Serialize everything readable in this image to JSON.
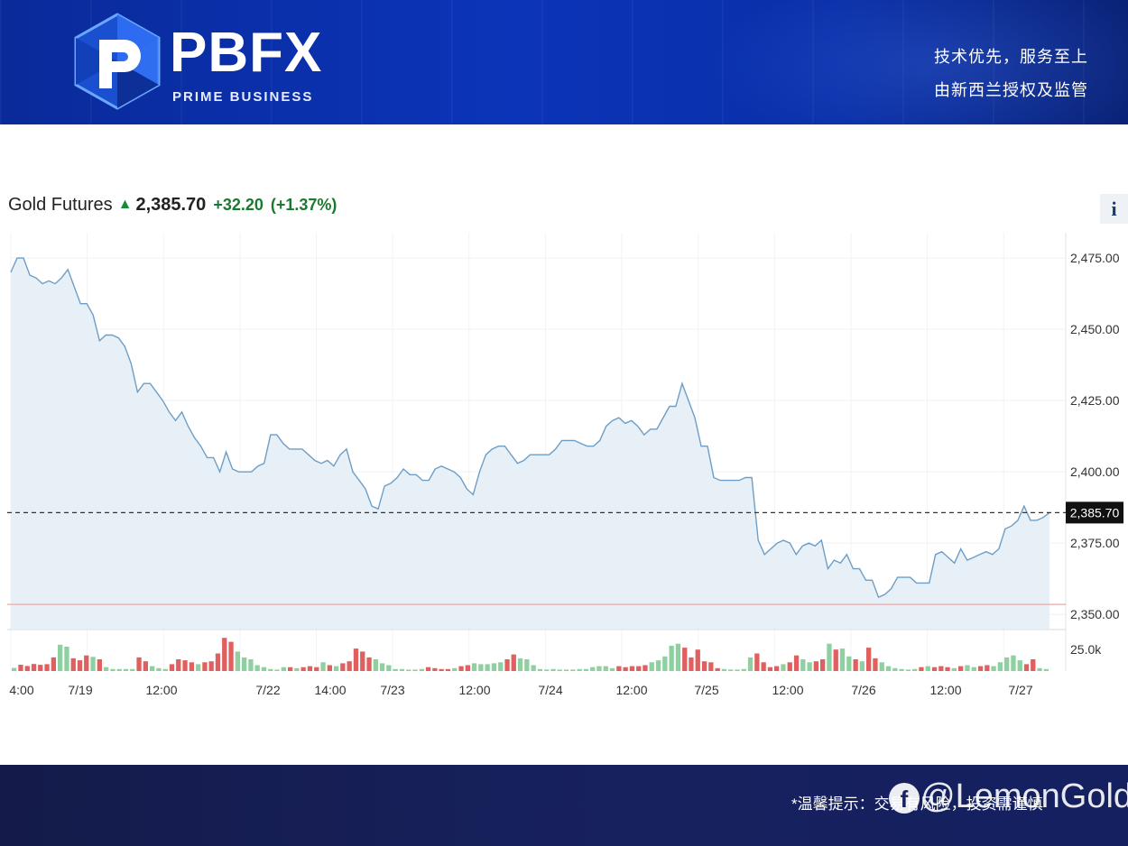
{
  "header": {
    "brand": "PBFX",
    "brand_sub": "PRIME BUSINESS",
    "slogan_line1": "技术优先，服务至上",
    "slogan_line2": "由新西兰授权及监管"
  },
  "quote": {
    "name": "Gold Futures",
    "price": "2,385.70",
    "change": "+32.20",
    "change_pct": "(+1.37%)",
    "direction": "up",
    "info_label": "i"
  },
  "footer": {
    "disclaimer": "*温馨提示：交易有风险，投资需谨慎",
    "watermark": "@LemonGold"
  },
  "colors": {
    "line": "#6e9ec6",
    "area": "#e6eef6",
    "up_change": "#1a7a30",
    "volume_up": "#8fd0a0",
    "volume_down": "#e06060",
    "reference_line": "#e8a8a8",
    "last_price_tag": "#111111"
  },
  "icons": {
    "up": "arrow-up-icon",
    "info": "info-icon",
    "logo": "pbfx-logo-icon",
    "watermark": "facebook-icon"
  },
  "chart_data": {
    "type": "line",
    "title": "Gold Futures",
    "ylim": [
      2345,
      2482
    ],
    "y_ticks": [
      "2,475.00",
      "2,450.00",
      "2,425.00",
      "2,400.00",
      "2,375.00",
      "2,350.00"
    ],
    "y_tick_values": [
      2475,
      2450,
      2425,
      2400,
      2375,
      2350
    ],
    "last_price": 2385.7,
    "last_price_label": "2,385.70",
    "reference_level": 2353.5,
    "x_ticks": [
      "4:00",
      "7/19",
      "12:00",
      "7/22",
      "14:00",
      "7/23",
      "12:00",
      "7/24",
      "12:00",
      "7/25",
      "12:00",
      "7/26",
      "12:00",
      "7/27"
    ],
    "volume_tick_label": "25.0k",
    "volume_max": 37000,
    "series": [
      {
        "values": [
          2470,
          2475,
          2475,
          2469,
          2468,
          2466,
          2467,
          2466,
          2468,
          2471,
          2465,
          2459,
          2459,
          2455,
          2446,
          2448,
          2448,
          2447,
          2444,
          2438,
          2428,
          2431,
          2431,
          2428,
          2425,
          2421,
          2418,
          2421,
          2416,
          2412,
          2409,
          2405,
          2405,
          2400,
          2407,
          2401,
          2400,
          2400,
          2400,
          2402,
          2403,
          2413,
          2413,
          2410,
          2408,
          2408,
          2408,
          2406,
          2404,
          2403,
          2404,
          2402,
          2406,
          2408,
          2400,
          2397,
          2394,
          2388,
          2387,
          2395,
          2396,
          2398,
          2401,
          2399,
          2399,
          2397,
          2397,
          2401,
          2402,
          2401,
          2400,
          2398,
          2394,
          2392,
          2400,
          2406,
          2408,
          2409,
          2409,
          2406,
          2403,
          2404,
          2406,
          2406,
          2406,
          2406,
          2408,
          2411,
          2411,
          2411,
          2410,
          2409,
          2409,
          2411,
          2416,
          2418,
          2419,
          2417,
          2418,
          2416,
          2413,
          2415,
          2415,
          2419,
          2423,
          2423,
          2431,
          2425,
          2419,
          2409,
          2409,
          2398,
          2397,
          2397,
          2397,
          2397,
          2398,
          2398,
          2376,
          2371,
          2373,
          2375,
          2376,
          2375,
          2371,
          2374,
          2375,
          2374,
          2376,
          2366,
          2369,
          2368,
          2371,
          2366,
          2366,
          2362,
          2362,
          2356,
          2357,
          2359,
          2363,
          2363,
          2363,
          2361,
          2361,
          2361,
          2371,
          2372,
          2370,
          2368,
          2373,
          2369,
          2370,
          2371,
          2372,
          2371,
          2373,
          2380,
          2381,
          2383,
          2388,
          2383,
          2383,
          2384,
          2385.7
        ]
      }
    ],
    "volume": [
      {
        "v": 3200,
        "up": true
      },
      {
        "v": 6500,
        "up": false
      },
      {
        "v": 5200,
        "up": false
      },
      {
        "v": 7200,
        "up": false
      },
      {
        "v": 6400,
        "up": false
      },
      {
        "v": 7000,
        "up": false
      },
      {
        "v": 14000,
        "up": false
      },
      {
        "v": 27000,
        "up": true
      },
      {
        "v": 25000,
        "up": true
      },
      {
        "v": 13000,
        "up": false
      },
      {
        "v": 11000,
        "up": false
      },
      {
        "v": 16000,
        "up": false
      },
      {
        "v": 14500,
        "up": true
      },
      {
        "v": 12000,
        "up": false
      },
      {
        "v": 4000,
        "up": true
      },
      {
        "v": 2000,
        "up": true
      },
      {
        "v": 2000,
        "up": true
      },
      {
        "v": 2000,
        "up": true
      },
      {
        "v": 2000,
        "up": true
      },
      {
        "v": 14000,
        "up": false
      },
      {
        "v": 10000,
        "up": false
      },
      {
        "v": 5000,
        "up": true
      },
      {
        "v": 3000,
        "up": true
      },
      {
        "v": 2000,
        "up": true
      },
      {
        "v": 7000,
        "up": false
      },
      {
        "v": 12000,
        "up": false
      },
      {
        "v": 11000,
        "up": false
      },
      {
        "v": 9000,
        "up": false
      },
      {
        "v": 7000,
        "up": true
      },
      {
        "v": 9000,
        "up": false
      },
      {
        "v": 10000,
        "up": false
      },
      {
        "v": 18000,
        "up": false
      },
      {
        "v": 34000,
        "up": false
      },
      {
        "v": 30000,
        "up": false
      },
      {
        "v": 20000,
        "up": true
      },
      {
        "v": 14000,
        "up": true
      },
      {
        "v": 12000,
        "up": true
      },
      {
        "v": 6000,
        "up": true
      },
      {
        "v": 4000,
        "up": true
      },
      {
        "v": 2000,
        "up": true
      },
      {
        "v": 1500,
        "up": true
      },
      {
        "v": 4000,
        "up": true
      },
      {
        "v": 4000,
        "up": false
      },
      {
        "v": 3000,
        "up": true
      },
      {
        "v": 4000,
        "up": false
      },
      {
        "v": 5000,
        "up": false
      },
      {
        "v": 4000,
        "up": false
      },
      {
        "v": 9000,
        "up": true
      },
      {
        "v": 6000,
        "up": false
      },
      {
        "v": 5000,
        "up": true
      },
      {
        "v": 8000,
        "up": false
      },
      {
        "v": 10000,
        "up": false
      },
      {
        "v": 23000,
        "up": false
      },
      {
        "v": 20000,
        "up": false
      },
      {
        "v": 14000,
        "up": false
      },
      {
        "v": 12000,
        "up": true
      },
      {
        "v": 8000,
        "up": true
      },
      {
        "v": 6000,
        "up": true
      },
      {
        "v": 2000,
        "up": true
      },
      {
        "v": 2000,
        "up": true
      },
      {
        "v": 1500,
        "up": true
      },
      {
        "v": 1500,
        "up": true
      },
      {
        "v": 2000,
        "up": true
      },
      {
        "v": 4000,
        "up": false
      },
      {
        "v": 3000,
        "up": false
      },
      {
        "v": 2000,
        "up": false
      },
      {
        "v": 2000,
        "up": false
      },
      {
        "v": 3000,
        "up": true
      },
      {
        "v": 5000,
        "up": false
      },
      {
        "v": 6000,
        "up": false
      },
      {
        "v": 8000,
        "up": true
      },
      {
        "v": 7000,
        "up": true
      },
      {
        "v": 7000,
        "up": true
      },
      {
        "v": 8000,
        "up": true
      },
      {
        "v": 9000,
        "up": true
      },
      {
        "v": 12000,
        "up": false
      },
      {
        "v": 17000,
        "up": false
      },
      {
        "v": 13000,
        "up": true
      },
      {
        "v": 12000,
        "up": true
      },
      {
        "v": 6000,
        "up": true
      },
      {
        "v": 2000,
        "up": true
      },
      {
        "v": 1500,
        "up": true
      },
      {
        "v": 2000,
        "up": true
      },
      {
        "v": 1500,
        "up": true
      },
      {
        "v": 1500,
        "up": true
      },
      {
        "v": 1500,
        "up": true
      },
      {
        "v": 2000,
        "up": true
      },
      {
        "v": 2000,
        "up": true
      },
      {
        "v": 4000,
        "up": true
      },
      {
        "v": 5000,
        "up": true
      },
      {
        "v": 5000,
        "up": true
      },
      {
        "v": 3000,
        "up": true
      },
      {
        "v": 5000,
        "up": false
      },
      {
        "v": 4000,
        "up": false
      },
      {
        "v": 5000,
        "up": false
      },
      {
        "v": 5000,
        "up": false
      },
      {
        "v": 6000,
        "up": false
      },
      {
        "v": 9000,
        "up": true
      },
      {
        "v": 11000,
        "up": true
      },
      {
        "v": 15000,
        "up": true
      },
      {
        "v": 26000,
        "up": true
      },
      {
        "v": 28000,
        "up": true
      },
      {
        "v": 24000,
        "up": false
      },
      {
        "v": 14000,
        "up": false
      },
      {
        "v": 22000,
        "up": false
      },
      {
        "v": 10000,
        "up": false
      },
      {
        "v": 9000,
        "up": false
      },
      {
        "v": 3000,
        "up": false
      },
      {
        "v": 2000,
        "up": true
      },
      {
        "v": 1500,
        "up": true
      },
      {
        "v": 1500,
        "up": true
      },
      {
        "v": 2000,
        "up": true
      },
      {
        "v": 14000,
        "up": true
      },
      {
        "v": 18000,
        "up": false
      },
      {
        "v": 9000,
        "up": false
      },
      {
        "v": 4000,
        "up": false
      },
      {
        "v": 5000,
        "up": false
      },
      {
        "v": 7000,
        "up": true
      },
      {
        "v": 9000,
        "up": false
      },
      {
        "v": 16000,
        "up": false
      },
      {
        "v": 12000,
        "up": true
      },
      {
        "v": 9000,
        "up": true
      },
      {
        "v": 10000,
        "up": false
      },
      {
        "v": 12000,
        "up": false
      },
      {
        "v": 28000,
        "up": true
      },
      {
        "v": 22000,
        "up": false
      },
      {
        "v": 23000,
        "up": true
      },
      {
        "v": 15000,
        "up": true
      },
      {
        "v": 12000,
        "up": false
      },
      {
        "v": 10000,
        "up": true
      },
      {
        "v": 24000,
        "up": false
      },
      {
        "v": 13000,
        "up": false
      },
      {
        "v": 9000,
        "up": true
      },
      {
        "v": 5000,
        "up": true
      },
      {
        "v": 3000,
        "up": true
      },
      {
        "v": 2000,
        "up": true
      },
      {
        "v": 1500,
        "up": true
      },
      {
        "v": 2000,
        "up": true
      },
      {
        "v": 4000,
        "up": false
      },
      {
        "v": 5000,
        "up": true
      },
      {
        "v": 4000,
        "up": false
      },
      {
        "v": 5000,
        "up": false
      },
      {
        "v": 4000,
        "up": false
      },
      {
        "v": 3000,
        "up": true
      },
      {
        "v": 5000,
        "up": false
      },
      {
        "v": 6000,
        "up": true
      },
      {
        "v": 4000,
        "up": true
      },
      {
        "v": 5000,
        "up": false
      },
      {
        "v": 6000,
        "up": false
      },
      {
        "v": 5000,
        "up": true
      },
      {
        "v": 9000,
        "up": true
      },
      {
        "v": 14000,
        "up": true
      },
      {
        "v": 16000,
        "up": true
      },
      {
        "v": 11000,
        "up": true
      },
      {
        "v": 7000,
        "up": false
      },
      {
        "v": 12000,
        "up": false
      },
      {
        "v": 3000,
        "up": true
      },
      {
        "v": 2000,
        "up": true
      }
    ]
  }
}
